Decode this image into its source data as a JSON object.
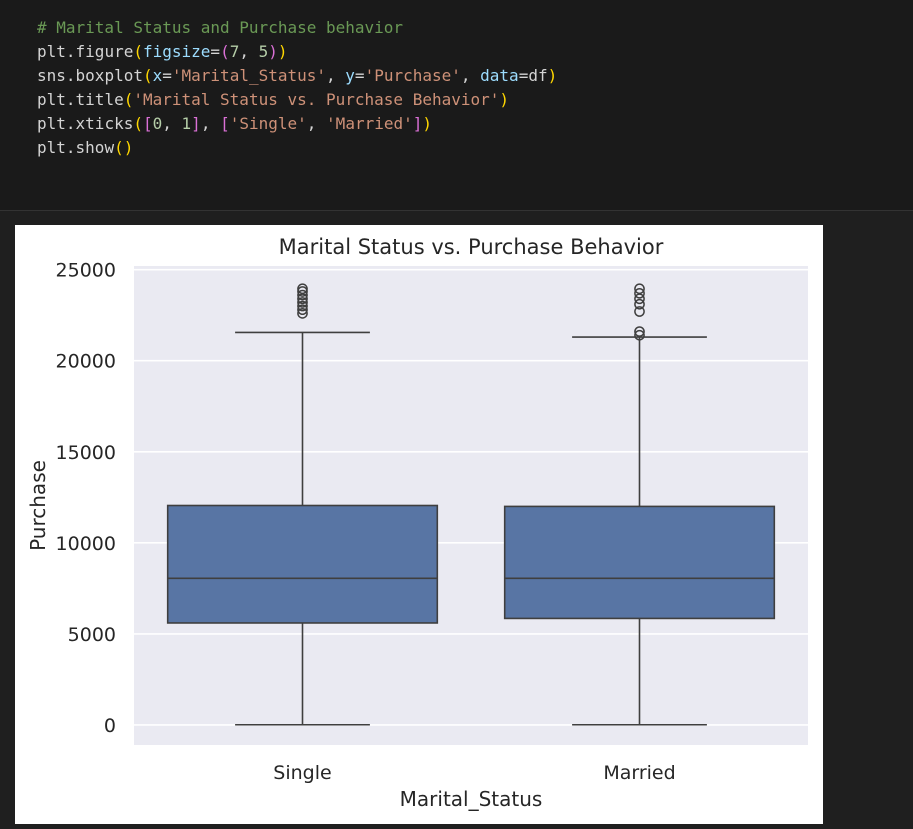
{
  "code_cell": {
    "lines": [
      [
        {
          "t": "# Marital Status and Purchase behavior",
          "c": "comment"
        }
      ],
      [
        {
          "t": "plt",
          "c": "plain"
        },
        {
          "t": ".figure",
          "c": "plain"
        },
        {
          "t": "(",
          "c": "p1"
        },
        {
          "t": "figsize",
          "c": "ident"
        },
        {
          "t": "=",
          "c": "plain"
        },
        {
          "t": "(",
          "c": "p2"
        },
        {
          "t": "7",
          "c": "number"
        },
        {
          "t": ", ",
          "c": "plain"
        },
        {
          "t": "5",
          "c": "number"
        },
        {
          "t": ")",
          "c": "p2"
        },
        {
          "t": ")",
          "c": "p1"
        }
      ],
      [
        {
          "t": "sns",
          "c": "plain"
        },
        {
          "t": ".boxplot",
          "c": "plain"
        },
        {
          "t": "(",
          "c": "p1"
        },
        {
          "t": "x",
          "c": "ident"
        },
        {
          "t": "=",
          "c": "plain"
        },
        {
          "t": "'Marital_Status'",
          "c": "string"
        },
        {
          "t": ", ",
          "c": "plain"
        },
        {
          "t": "y",
          "c": "ident"
        },
        {
          "t": "=",
          "c": "plain"
        },
        {
          "t": "'Purchase'",
          "c": "string"
        },
        {
          "t": ", ",
          "c": "plain"
        },
        {
          "t": "data",
          "c": "ident"
        },
        {
          "t": "=",
          "c": "plain"
        },
        {
          "t": "df",
          "c": "plain"
        },
        {
          "t": ")",
          "c": "p1"
        }
      ],
      [
        {
          "t": "plt",
          "c": "plain"
        },
        {
          "t": ".title",
          "c": "plain"
        },
        {
          "t": "(",
          "c": "p1"
        },
        {
          "t": "'Marital Status vs. Purchase Behavior'",
          "c": "string"
        },
        {
          "t": ")",
          "c": "p1"
        }
      ],
      [
        {
          "t": "plt",
          "c": "plain"
        },
        {
          "t": ".xticks",
          "c": "plain"
        },
        {
          "t": "(",
          "c": "p1"
        },
        {
          "t": "[",
          "c": "p2"
        },
        {
          "t": "0",
          "c": "number"
        },
        {
          "t": ", ",
          "c": "plain"
        },
        {
          "t": "1",
          "c": "number"
        },
        {
          "t": "]",
          "c": "p2"
        },
        {
          "t": ", ",
          "c": "plain"
        },
        {
          "t": "[",
          "c": "p2"
        },
        {
          "t": "'Single'",
          "c": "string"
        },
        {
          "t": ", ",
          "c": "plain"
        },
        {
          "t": "'Married'",
          "c": "string"
        },
        {
          "t": "]",
          "c": "p2"
        },
        {
          "t": ")",
          "c": "p1"
        }
      ],
      [
        {
          "t": "plt",
          "c": "plain"
        },
        {
          "t": ".show",
          "c": "plain"
        },
        {
          "t": "(",
          "c": "p1"
        },
        {
          "t": ")",
          "c": "p1"
        }
      ]
    ]
  },
  "chart_data": {
    "type": "box",
    "title": "Marital Status vs. Purchase Behavior",
    "xlabel": "Marital_Status",
    "ylabel": "Purchase",
    "ylim": [
      -1100,
      25200
    ],
    "yticks": [
      0,
      5000,
      10000,
      15000,
      20000,
      25000
    ],
    "ytick_labels": [
      "0",
      "5000",
      "10000",
      "15000",
      "20000",
      "25000"
    ],
    "categories": [
      "Single",
      "Married"
    ],
    "grid": true,
    "box_color": "#5875a4",
    "background_color": "#eaeaf2",
    "line_color": "#3f3f3f",
    "boxes": [
      {
        "category": "Single",
        "whisker_low": 12,
        "q1": 5600,
        "median": 8050,
        "q3": 12050,
        "whisker_high": 21550,
        "outliers": [
          22600,
          22800,
          23000,
          23200,
          23400,
          23600,
          23800,
          23950
        ]
      },
      {
        "category": "Married",
        "whisker_low": 12,
        "q1": 5850,
        "median": 8050,
        "q3": 12000,
        "whisker_high": 21300,
        "outliers": [
          21400,
          21600,
          22700,
          23100,
          23400,
          23700,
          23950
        ]
      }
    ]
  }
}
